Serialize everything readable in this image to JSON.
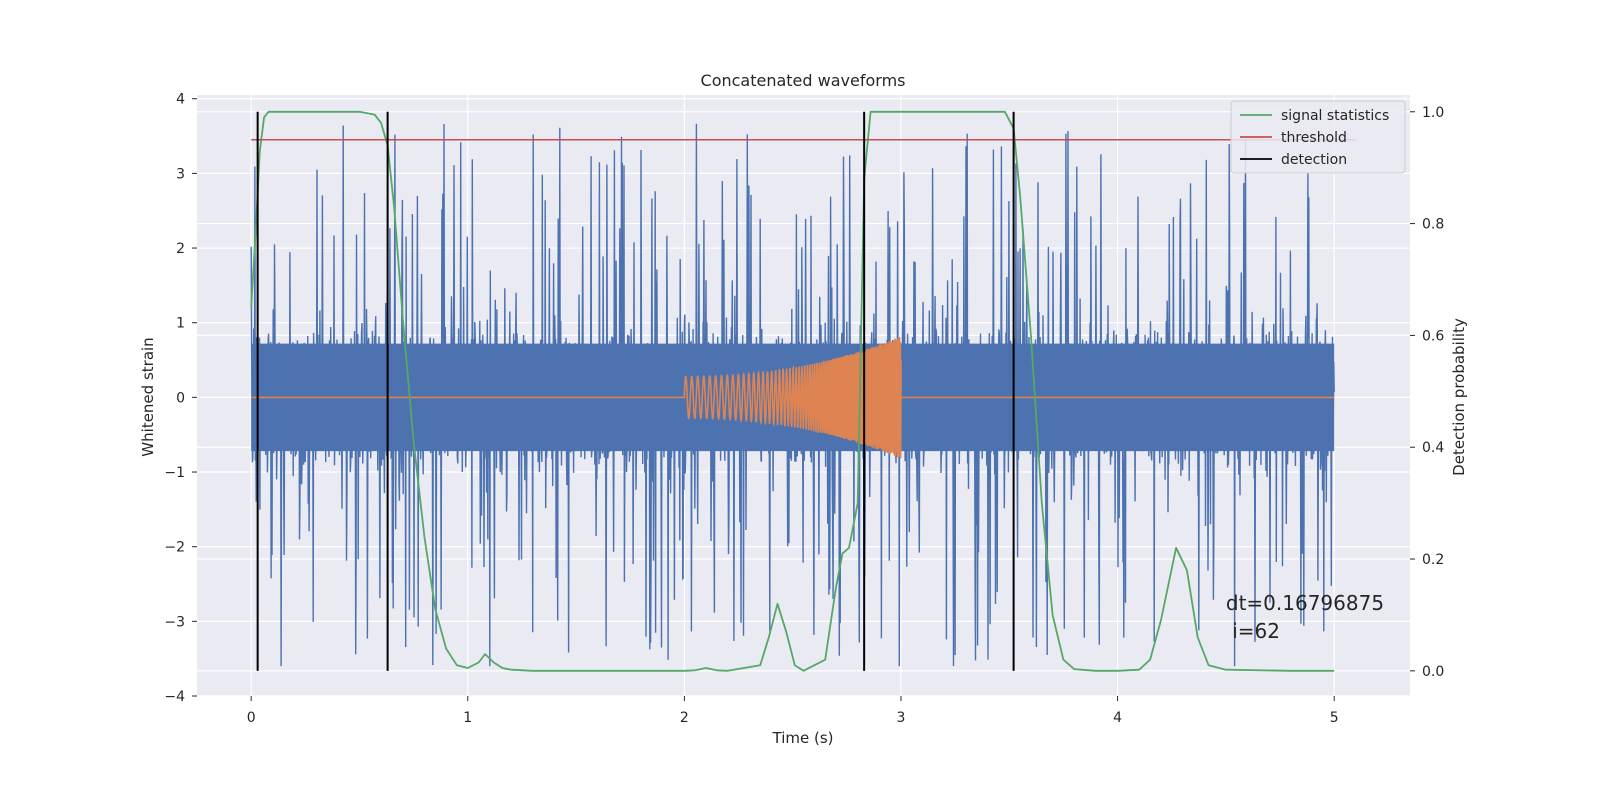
{
  "chart_data": {
    "type": "line",
    "title": "Concatenated waveforms",
    "xlabel": "Time (s)",
    "ylabel": "Whitened strain",
    "y2label": "Detection probability",
    "xlim": [
      -0.25,
      5.35
    ],
    "ylim": [
      -4.0,
      4.05
    ],
    "y2lim": [
      -0.045,
      1.03
    ],
    "x_ticks": [
      0,
      1,
      2,
      3,
      4,
      5
    ],
    "x_tick_labels": [
      "0",
      "1",
      "2",
      "3",
      "4",
      "5"
    ],
    "y_ticks": [
      4,
      3,
      2,
      1,
      0,
      -1,
      -2,
      -3,
      -4
    ],
    "y_tick_labels": [
      "4",
      "3",
      "2",
      "1",
      "0",
      "−1",
      "−2",
      "−3",
      "−4"
    ],
    "y2_ticks": [
      1.0,
      0.8,
      0.6,
      0.4,
      0.2,
      0.0
    ],
    "y2_tick_labels": [
      "1.0",
      "0.8",
      "0.6",
      "0.4",
      "0.2",
      "0.0"
    ],
    "grid": true,
    "legend_placement": "top-right",
    "colors": {
      "strain": "#4c72b0",
      "injected": "#dd8452",
      "signal_statistics": "#55a868",
      "threshold": "#c44e52",
      "detection": "#000000",
      "plot_background": "#eaeaf2",
      "grid": "#ffffff"
    },
    "series": [
      {
        "name": "signal statistics",
        "axis": "right",
        "x": [
          0.0,
          0.02,
          0.04,
          0.06,
          0.08,
          0.1,
          0.15,
          0.3,
          0.5,
          0.57,
          0.6,
          0.63,
          0.66,
          0.7,
          0.75,
          0.8,
          0.85,
          0.9,
          0.95,
          1.0,
          1.05,
          1.08,
          1.12,
          1.16,
          1.2,
          1.3,
          1.5,
          1.8,
          2.0,
          2.05,
          2.1,
          2.15,
          2.2,
          2.35,
          2.39,
          2.43,
          2.47,
          2.51,
          2.55,
          2.65,
          2.7,
          2.73,
          2.76,
          2.8,
          2.83,
          2.86,
          2.9,
          3.0,
          3.3,
          3.48,
          3.52,
          3.55,
          3.6,
          3.65,
          3.7,
          3.75,
          3.8,
          3.9,
          4.0,
          4.1,
          4.15,
          4.2,
          4.27,
          4.32,
          4.37,
          4.42,
          4.5,
          4.8,
          5.0
        ],
        "values": [
          0.65,
          0.78,
          0.93,
          0.99,
          1.0,
          1.0,
          1.0,
          1.0,
          1.0,
          0.995,
          0.98,
          0.94,
          0.83,
          0.63,
          0.41,
          0.24,
          0.11,
          0.04,
          0.01,
          0.005,
          0.015,
          0.03,
          0.015,
          0.005,
          0.002,
          0.0,
          0.0,
          0.0,
          0.0,
          0.001,
          0.005,
          0.001,
          0.0,
          0.01,
          0.06,
          0.12,
          0.07,
          0.01,
          0.0,
          0.02,
          0.15,
          0.21,
          0.22,
          0.3,
          0.88,
          1.0,
          1.0,
          1.0,
          1.0,
          1.0,
          0.97,
          0.85,
          0.6,
          0.3,
          0.1,
          0.02,
          0.003,
          0.0,
          0.0,
          0.002,
          0.02,
          0.09,
          0.22,
          0.18,
          0.06,
          0.01,
          0.002,
          0.0,
          0.0
        ]
      },
      {
        "name": "threshold",
        "axis": "right",
        "x": [
          0.0,
          5.1
        ],
        "values": [
          0.95,
          0.95
        ]
      },
      {
        "name": "detection",
        "axis": "right",
        "x": [
          0.03,
          0.63,
          2.83,
          3.52
        ],
        "values": [
          1.0,
          1.0,
          1.0,
          1.0
        ],
        "kind": "vertical-lines",
        "ymin": 0.0
      }
    ],
    "strain_series": {
      "axis": "left",
      "x_range": [
        0.0,
        5.0
      ],
      "core_amplitude": 0.72,
      "spike_amplitude_max": 3.7,
      "spike_amplitude_min": -3.6
    },
    "injected_series": {
      "axis": "left",
      "x_range": [
        2.0,
        3.0
      ],
      "baseline": 0.0,
      "amplitude_start": 0.28,
      "amplitude_end": 0.82
    },
    "annotation": {
      "line1": "dt=0.16796875",
      "line2": " i=62",
      "x": 4.5,
      "y": -2.85
    },
    "legend": [
      {
        "label": "signal statistics",
        "color": "#55a868"
      },
      {
        "label": "threshold",
        "color": "#c44e52"
      },
      {
        "label": "detection",
        "color": "#000000"
      }
    ]
  }
}
